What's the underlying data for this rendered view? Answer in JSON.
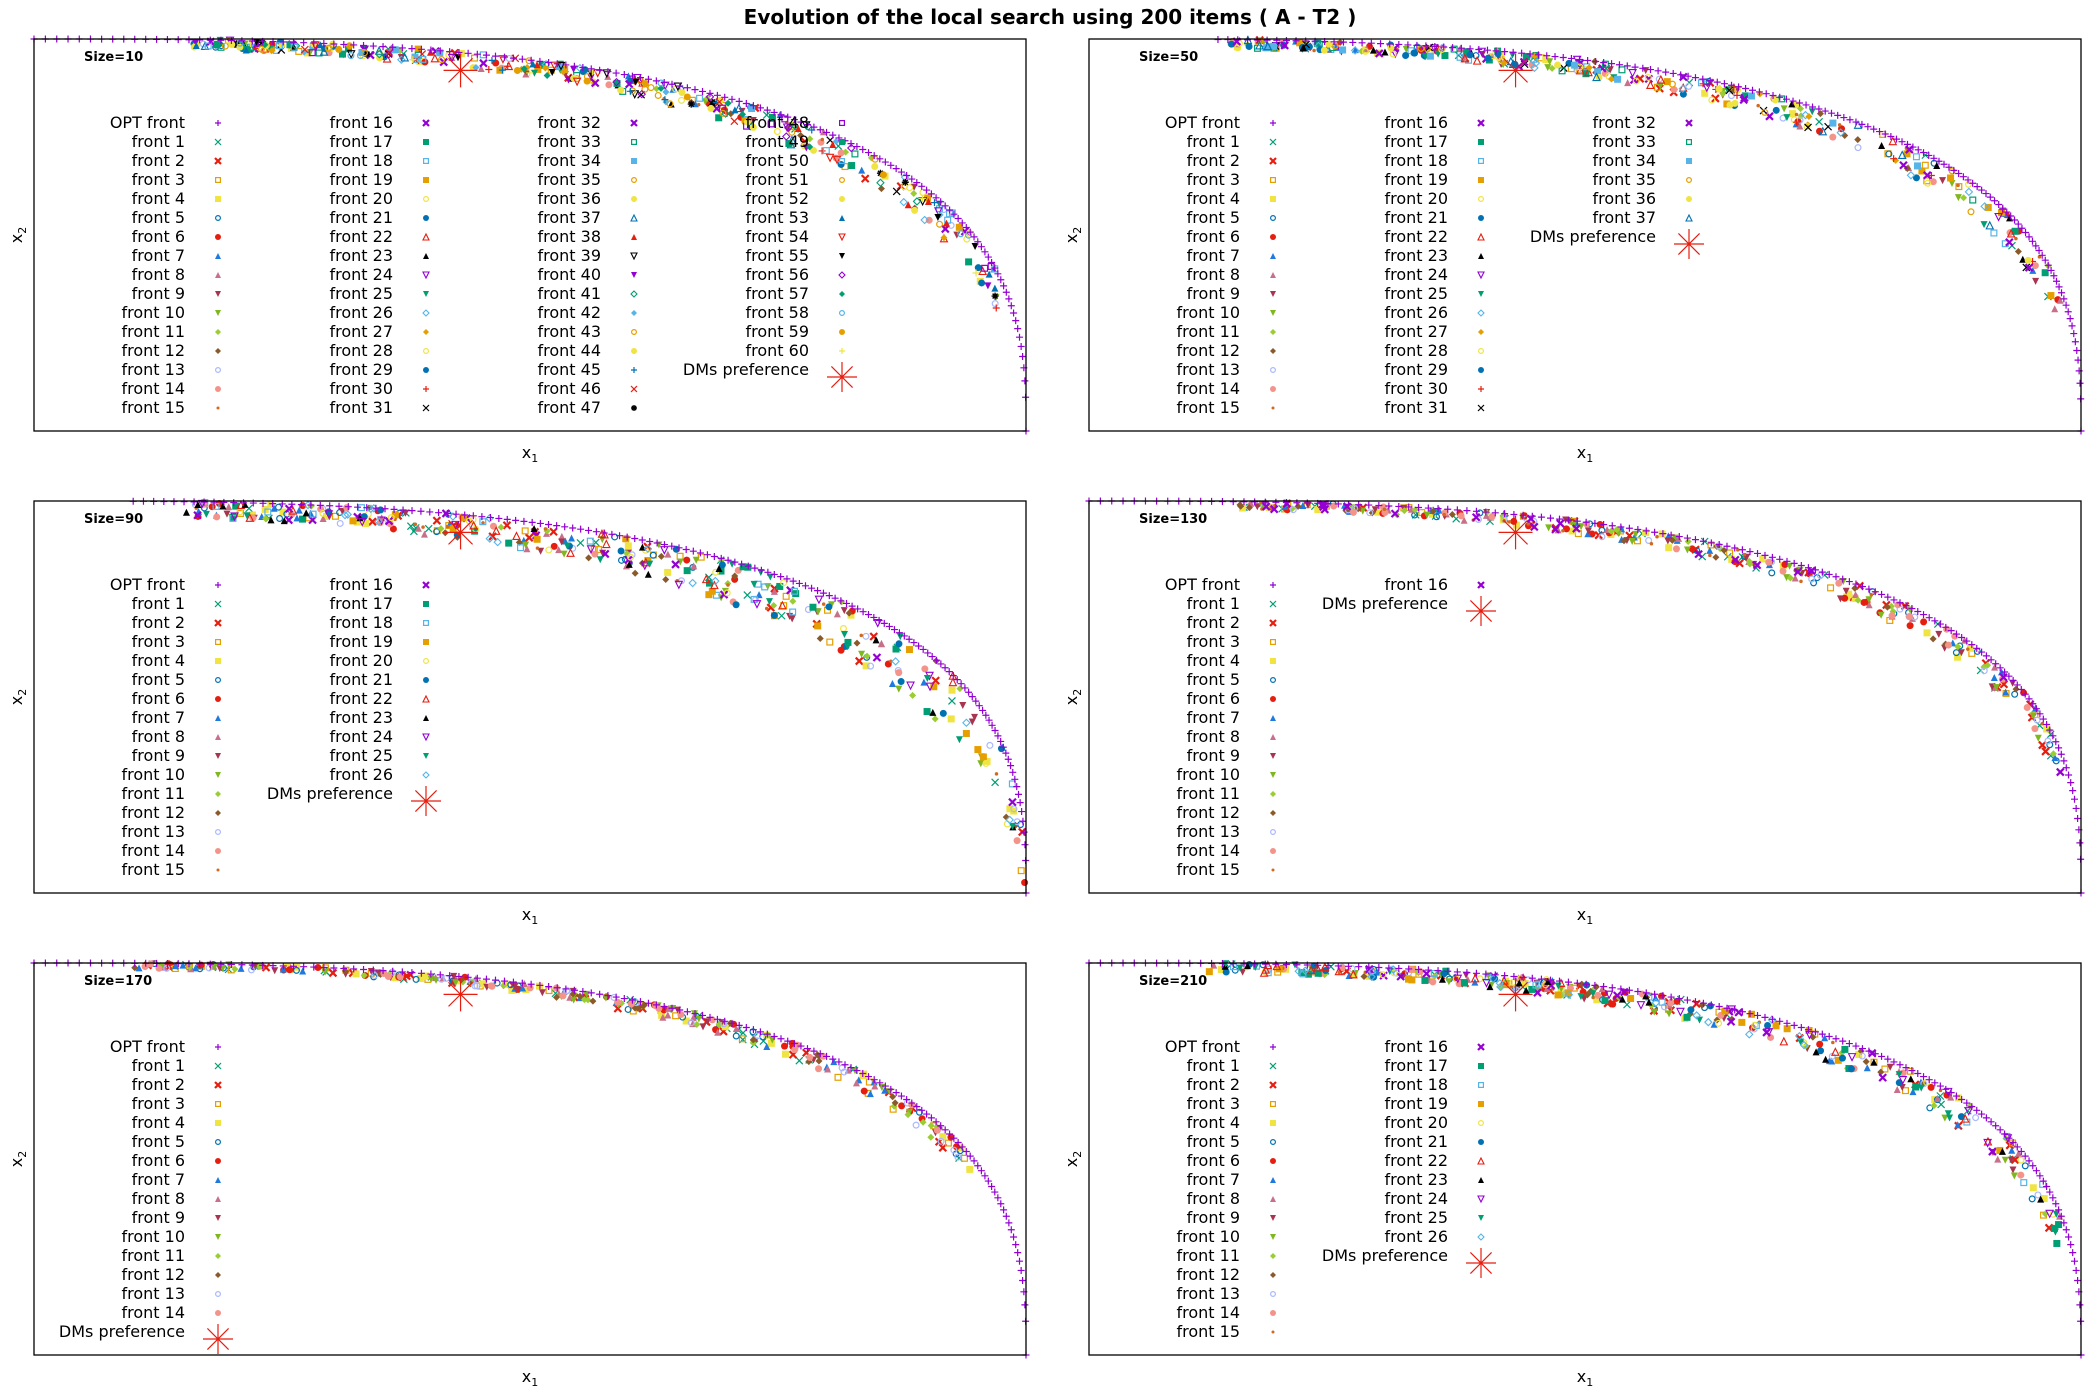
{
  "figure": {
    "title": "Evolution of the local search using 200 items ( A - T2 )"
  },
  "legend_labels": {
    "opt": "OPT front",
    "front_prefix": "front",
    "dm": "DMs preference"
  },
  "series_style": {
    "opt": {
      "marker": "plus",
      "color": "#9400d3"
    },
    "dm": {
      "marker": "asterisk",
      "color": "#e51e10"
    },
    "fronts": [
      {
        "marker": "cross",
        "color": "#009e73"
      },
      {
        "marker": "cross-bold",
        "color": "#e51e10"
      },
      {
        "marker": "square-open",
        "color": "#e69f00"
      },
      {
        "marker": "square",
        "color": "#f0e442"
      },
      {
        "marker": "circle-open",
        "color": "#0072b2"
      },
      {
        "marker": "circle",
        "color": "#e51e10"
      },
      {
        "marker": "triangle",
        "color": "#1f7ae0"
      },
      {
        "marker": "triangle",
        "color": "#c8708a"
      },
      {
        "marker": "triangle-down",
        "color": "#a8344f"
      },
      {
        "marker": "triangle-down",
        "color": "#7fb81e"
      },
      {
        "marker": "diamond",
        "color": "#9acd32"
      },
      {
        "marker": "diamond",
        "color": "#8b5a2b"
      },
      {
        "marker": "circle-open",
        "color": "#aab8ff"
      },
      {
        "marker": "circle",
        "color": "#f4938a"
      },
      {
        "marker": "dot",
        "color": "#d2691e"
      },
      {
        "marker": "cross-bold",
        "color": "#9400d3"
      },
      {
        "marker": "square",
        "color": "#009e73"
      },
      {
        "marker": "square-open",
        "color": "#56b4e9"
      },
      {
        "marker": "square",
        "color": "#e69f00"
      },
      {
        "marker": "circle-open",
        "color": "#f0e442"
      },
      {
        "marker": "circle",
        "color": "#0072b2"
      },
      {
        "marker": "triangle-open",
        "color": "#e51e10"
      },
      {
        "marker": "triangle",
        "color": "#000000"
      },
      {
        "marker": "triangle-down-open",
        "color": "#9400d3"
      },
      {
        "marker": "triangle-down",
        "color": "#009e73"
      },
      {
        "marker": "diamond-open",
        "color": "#56b4e9"
      },
      {
        "marker": "diamond",
        "color": "#e69f00"
      },
      {
        "marker": "circle-open",
        "color": "#f0e442"
      },
      {
        "marker": "circle",
        "color": "#0072b2"
      },
      {
        "marker": "plus",
        "color": "#e51e10"
      },
      {
        "marker": "cross",
        "color": "#000000"
      },
      {
        "marker": "cross-bold",
        "color": "#9400d3"
      },
      {
        "marker": "square-open",
        "color": "#009e73"
      },
      {
        "marker": "square",
        "color": "#56b4e9"
      },
      {
        "marker": "circle-open",
        "color": "#e69f00"
      },
      {
        "marker": "circle",
        "color": "#f0e442"
      },
      {
        "marker": "triangle-open",
        "color": "#0072b2"
      },
      {
        "marker": "triangle",
        "color": "#e51e10"
      },
      {
        "marker": "triangle-down-open",
        "color": "#000000"
      },
      {
        "marker": "triangle-down",
        "color": "#9400d3"
      },
      {
        "marker": "diamond-open",
        "color": "#009e73"
      },
      {
        "marker": "diamond",
        "color": "#56b4e9"
      },
      {
        "marker": "circle-open",
        "color": "#e69f00"
      },
      {
        "marker": "circle",
        "color": "#f0e442"
      },
      {
        "marker": "plus",
        "color": "#0072b2"
      },
      {
        "marker": "cross",
        "color": "#e51e10"
      },
      {
        "marker": "asterisk-small",
        "color": "#000000"
      },
      {
        "marker": "square-open",
        "color": "#9400d3"
      },
      {
        "marker": "square",
        "color": "#009e73"
      },
      {
        "marker": "square-open",
        "color": "#56b4e9"
      },
      {
        "marker": "circle-open",
        "color": "#e69f00"
      },
      {
        "marker": "circle",
        "color": "#f0e442"
      },
      {
        "marker": "triangle",
        "color": "#0072b2"
      },
      {
        "marker": "triangle-down-open",
        "color": "#e51e10"
      },
      {
        "marker": "triangle-down",
        "color": "#000000"
      },
      {
        "marker": "diamond-open",
        "color": "#9400d3"
      },
      {
        "marker": "diamond",
        "color": "#009e73"
      },
      {
        "marker": "circle-open",
        "color": "#56b4e9"
      },
      {
        "marker": "circle",
        "color": "#e69f00"
      },
      {
        "marker": "plus",
        "color": "#f0e442"
      }
    ]
  },
  "chart_data": [
    {
      "type": "scatter",
      "size_label": "Size=10",
      "xlabel": "x",
      "xlabel_sub": "1",
      "ylabel": "x",
      "ylabel_sub": "2",
      "xlim": [
        0,
        1
      ],
      "ylim": [
        0,
        1
      ],
      "fronts_count": 60,
      "legend_columns": 4,
      "legend_rows": 16,
      "dm_preference": {
        "x": 0.43,
        "y": 0.92
      },
      "opt_front": {
        "start_x": 0.0,
        "curve_p": 2.8,
        "points": 140
      },
      "front_clouds": {
        "spread": 0.05,
        "points_per_front": 7,
        "x_range": [
          0.16,
          0.97
        ]
      }
    },
    {
      "type": "scatter",
      "size_label": "Size=50",
      "xlabel": "x",
      "xlabel_sub": "1",
      "ylabel": "x",
      "ylabel_sub": "2",
      "xlim": [
        0,
        1
      ],
      "ylim": [
        0,
        1
      ],
      "fronts_count": 37,
      "legend_columns": 3,
      "legend_rows": 16,
      "dm_preference": {
        "x": 0.43,
        "y": 0.92
      },
      "opt_front": {
        "start_x": 0.13,
        "curve_p": 2.8,
        "points": 140
      },
      "front_clouds": {
        "spread": 0.05,
        "points_per_front": 10,
        "x_range": [
          0.14,
          0.98
        ]
      }
    },
    {
      "type": "scatter",
      "size_label": "Size=90",
      "xlabel": "x",
      "xlabel_sub": "1",
      "ylabel": "x",
      "ylabel_sub": "2",
      "xlim": [
        0,
        1
      ],
      "ylim": [
        0,
        1
      ],
      "fronts_count": 26,
      "legend_columns": 2,
      "legend_rows": 16,
      "dm_preference": {
        "x": 0.43,
        "y": 0.92
      },
      "opt_front": {
        "start_x": 0.1,
        "curve_p": 2.8,
        "points": 140
      },
      "front_clouds": {
        "spread": 0.09,
        "points_per_front": 16,
        "x_range": [
          0.15,
          1.0
        ]
      }
    },
    {
      "type": "scatter",
      "size_label": "Size=130",
      "xlabel": "x",
      "xlabel_sub": "1",
      "ylabel": "x",
      "ylabel_sub": "2",
      "xlim": [
        0,
        1
      ],
      "ylim": [
        0,
        1
      ],
      "fronts_count": 16,
      "legend_columns": 2,
      "legend_rows": 16,
      "dm_preference": {
        "x": 0.43,
        "y": 0.92
      },
      "opt_front": {
        "start_x": 0.0,
        "curve_p": 2.8,
        "points": 140
      },
      "front_clouds": {
        "spread": 0.04,
        "points_per_front": 22,
        "x_range": [
          0.15,
          0.98
        ]
      }
    },
    {
      "type": "scatter",
      "size_label": "Size=170",
      "xlabel": "x",
      "xlabel_sub": "1",
      "ylabel": "x",
      "ylabel_sub": "2",
      "xlim": [
        0,
        1
      ],
      "ylim": [
        0,
        1
      ],
      "fronts_count": 14,
      "legend_columns": 1,
      "legend_rows": 16,
      "dm_preference": {
        "x": 0.43,
        "y": 0.92
      },
      "opt_front": {
        "start_x": 0.0,
        "curve_p": 2.8,
        "points": 140
      },
      "front_clouds": {
        "spread": 0.03,
        "points_per_front": 24,
        "x_range": [
          0.1,
          0.95
        ]
      }
    },
    {
      "type": "scatter",
      "size_label": "Size=210",
      "xlabel": "x",
      "xlabel_sub": "1",
      "ylabel": "x",
      "ylabel_sub": "2",
      "xlim": [
        0,
        1
      ],
      "ylim": [
        0,
        1
      ],
      "fronts_count": 26,
      "legend_columns": 2,
      "legend_rows": 16,
      "dm_preference": {
        "x": 0.43,
        "y": 0.92
      },
      "opt_front": {
        "start_x": 0.0,
        "curve_p": 2.8,
        "points": 140
      },
      "front_clouds": {
        "spread": 0.05,
        "points_per_front": 16,
        "x_range": [
          0.12,
          0.98
        ]
      }
    }
  ]
}
